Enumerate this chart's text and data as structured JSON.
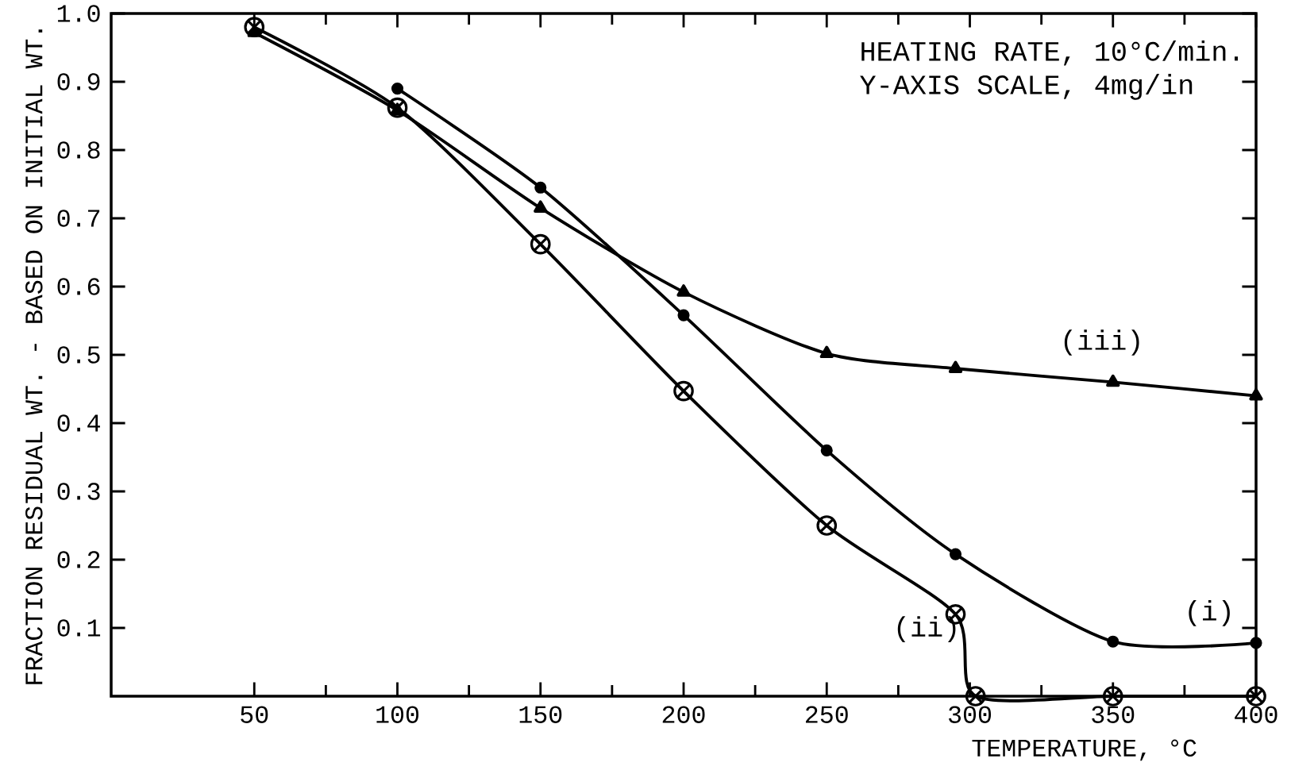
{
  "chart_data": {
    "type": "line",
    "xlabel": "TEMPERATURE, °C",
    "ylabel": "FRACTION RESIDUAL WT. - BASED ON INITIAL WT.",
    "annotations": [
      "HEATING RATE, 10°C/min.",
      "Y-AXIS SCALE, 4mg/in"
    ],
    "xlim": [
      0,
      400
    ],
    "ylim": [
      0,
      1
    ],
    "xticks": [
      50,
      100,
      150,
      200,
      250,
      300,
      350,
      400
    ],
    "yticks": [
      0.1,
      0.2,
      0.3,
      0.4,
      0.5,
      0.6,
      0.7,
      0.8,
      0.9,
      {
        "value": 1.0,
        "label": "1.0"
      }
    ],
    "grid": false,
    "line_style": "solid",
    "series": [
      {
        "name": "(i)",
        "color": "#000000",
        "marker": "circle",
        "x": [
          100,
          150,
          200,
          250,
          295,
          350,
          400
        ],
        "values": [
          0.89,
          0.745,
          0.558,
          0.36,
          0.208,
          0.08,
          0.078
        ]
      },
      {
        "name": "(ii)",
        "color": "#000000",
        "marker": "cross",
        "x": [
          50,
          100,
          150,
          200,
          250,
          295,
          302,
          350,
          400
        ],
        "values": [
          0.98,
          0.862,
          0.662,
          0.447,
          0.25,
          0.12,
          0.0,
          0.0,
          0.0
        ]
      },
      {
        "name": "(iii)",
        "color": "#000000",
        "marker": "triangle",
        "x": [
          50,
          100,
          150,
          200,
          250,
          295,
          350,
          400
        ],
        "values": [
          0.972,
          0.858,
          0.715,
          0.592,
          0.502,
          0.48,
          0.46,
          0.44
        ]
      }
    ]
  }
}
